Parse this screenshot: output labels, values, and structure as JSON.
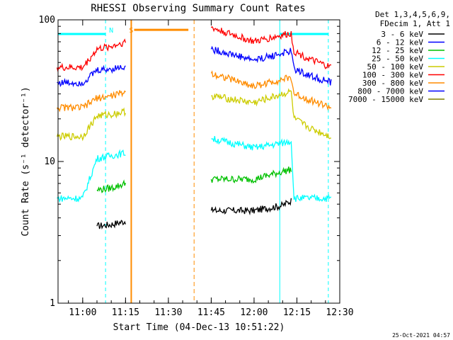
{
  "chart_data": {
    "type": "line",
    "title": "RHESSI Observing Summary Count Rates",
    "xlabel": "Start Time (04-Dec-13 10:51:22)",
    "ylabel": "Count Rate (s⁻¹ detector⁻¹)",
    "y_scale": "log",
    "ylim": [
      1,
      100
    ],
    "xlim": [
      "10:51:22",
      "12:30:00"
    ],
    "x_ticks": [
      "11:00",
      "11:15",
      "11:30",
      "11:45",
      "12:00",
      "12:15",
      "12:30"
    ],
    "y_ticks": [
      "1",
      "10",
      "100"
    ],
    "grid": false,
    "legend_position": "top-right",
    "legend_header": [
      "Det 1,3,4,5,6,9,",
      "FDecim 1, Att 1"
    ],
    "footer": "25-Oct-2021 04:57",
    "annotations": [
      {
        "label": "N",
        "x": "11:10",
        "color": "#00ffff"
      },
      {
        "label": "S",
        "x": "11:17",
        "color": "#ff8c00"
      }
    ],
    "markers": {
      "night_line_color": "#00ffff",
      "saa_line_color": "#ff8c00",
      "night_dashed": [
        "11:08",
        "12:26"
      ],
      "night_solid": [
        "12:09"
      ],
      "saa_solid": [
        "11:17"
      ],
      "saa_dashed": [
        "11:39"
      ]
    },
    "series": [
      {
        "name": "3 - 6 keV",
        "color": "#000000",
        "x": [
          "11:05",
          "11:10",
          "11:15",
          "11:40",
          "11:45",
          "12:00",
          "12:10",
          "12:13"
        ],
        "values": [
          3.5,
          3.6,
          3.8,
          null,
          4.5,
          4.5,
          4.9,
          5.3
        ]
      },
      {
        "name": "6 - 12 keV",
        "color": "#0000ff",
        "x": [],
        "values": []
      },
      {
        "name": "12 - 25 keV",
        "color": "#00c000",
        "x": [
          "11:05",
          "11:10",
          "11:15",
          "11:40",
          "11:45",
          "12:00",
          "12:10",
          "12:13"
        ],
        "values": [
          6.3,
          6.5,
          7.0,
          null,
          7.5,
          7.5,
          8.5,
          8.8
        ]
      },
      {
        "name": "25 - 50 keV",
        "color": "#00ffff",
        "x": [
          "10:51",
          "11:00",
          "11:05",
          "11:10",
          "11:15",
          "11:40",
          "11:45",
          "12:00",
          "12:10",
          "12:13",
          "12:14",
          "12:20",
          "12:27"
        ],
        "values": [
          5.5,
          5.5,
          10.5,
          11.0,
          11.5,
          null,
          14.5,
          12.5,
          13.5,
          14.0,
          5.5,
          5.5,
          5.5
        ]
      },
      {
        "name": "50 - 100 keV",
        "color": "#cccc00",
        "x": [
          "10:51",
          "11:00",
          "11:05",
          "11:10",
          "11:15",
          "11:40",
          "11:45",
          "12:00",
          "12:10",
          "12:13",
          "12:14",
          "12:20",
          "12:27"
        ],
        "values": [
          15.0,
          15.0,
          21.0,
          21.5,
          22.5,
          null,
          29.0,
          26.0,
          30.0,
          31.0,
          20.0,
          17.0,
          15.0
        ]
      },
      {
        "name": "100 - 300 keV",
        "color": "#ff0000",
        "x": [
          "10:51",
          "11:00",
          "11:05",
          "11:10",
          "11:15",
          "11:40",
          "11:45",
          "12:00",
          "12:10",
          "12:13",
          "12:14",
          "12:20",
          "12:27"
        ],
        "values": [
          46.0,
          46.0,
          62.0,
          65.0,
          70.0,
          null,
          88.0,
          70.0,
          78.0,
          80.0,
          60.0,
          52.0,
          46.0
        ]
      },
      {
        "name": "300 - 800 keV",
        "color": "#ff8c00",
        "x": [
          "10:51",
          "11:00",
          "11:05",
          "11:10",
          "11:15",
          "11:40",
          "11:45",
          "12:00",
          "12:10",
          "12:13",
          "12:14",
          "12:20",
          "12:27"
        ],
        "values": [
          24.0,
          24.0,
          28.0,
          29.0,
          31.0,
          null,
          42.0,
          34.0,
          38.0,
          39.0,
          30.0,
          27.0,
          24.0
        ]
      },
      {
        "name": "800 - 7000 keV",
        "color": "#0000ff",
        "x": [
          "10:51",
          "11:00",
          "11:05",
          "11:10",
          "11:15",
          "11:40",
          "11:45",
          "12:00",
          "12:10",
          "12:13",
          "12:14",
          "12:20",
          "12:27"
        ],
        "values": [
          36.0,
          36.0,
          44.0,
          45.0,
          47.0,
          null,
          62.0,
          52.0,
          58.0,
          60.0,
          45.0,
          40.0,
          36.0
        ]
      },
      {
        "name": "7000 - 15000 keV",
        "color": "#808000",
        "x": [],
        "values": []
      }
    ],
    "saa_flag": {
      "color": "#ff8c00",
      "x": [
        "11:18",
        "11:37"
      ],
      "value": 85
    }
  }
}
